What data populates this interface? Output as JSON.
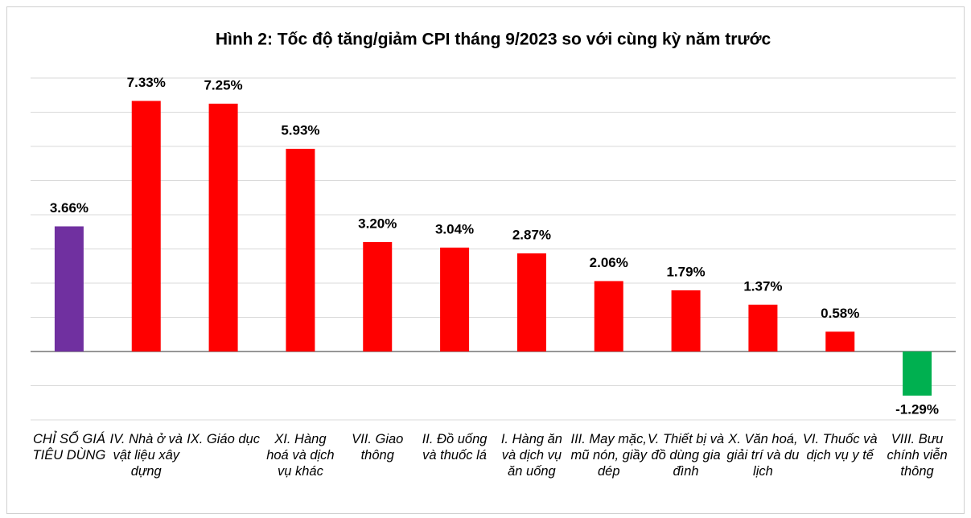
{
  "chart_data": {
    "type": "bar",
    "title": "Hình 2: Tốc độ tăng/giảm CPI tháng 9/2023 so với cùng kỳ năm trước",
    "categories": [
      "CHỈ SỐ GIÁ TIÊU DÙNG",
      "IV. Nhà ở và vật liệu xây dựng",
      "IX. Giáo dục",
      "XI. Hàng hoá và dịch vụ khác",
      "VII. Giao thông",
      "II. Đồ uống và thuốc lá",
      "I. Hàng ăn và dịch vụ ăn uống",
      "III. May mặc, mũ nón, giầy dép",
      "V. Thiết bị và đồ dùng gia đình",
      "X. Văn hoá, giải trí và du lịch",
      "VI. Thuốc và dịch vụ y tế",
      "VIII. Bưu chính viễn thông"
    ],
    "values": [
      3.66,
      7.33,
      7.25,
      5.93,
      3.2,
      3.04,
      2.87,
      2.06,
      1.79,
      1.37,
      0.58,
      -1.29
    ],
    "value_labels": [
      "3.66%",
      "7.33%",
      "7.25%",
      "5.93%",
      "3.20%",
      "3.04%",
      "2.87%",
      "2.06%",
      "1.79%",
      "1.37%",
      "0.58%",
      "-1.29%"
    ],
    "colors": [
      "#7030a0",
      "#ff0000",
      "#ff0000",
      "#ff0000",
      "#ff0000",
      "#ff0000",
      "#ff0000",
      "#ff0000",
      "#ff0000",
      "#ff0000",
      "#ff0000",
      "#00b050"
    ],
    "ylim": [
      -2,
      8
    ],
    "yticks": [
      -2,
      -1,
      0,
      1,
      2,
      3,
      4,
      5,
      6,
      7,
      8
    ],
    "grid": true
  }
}
